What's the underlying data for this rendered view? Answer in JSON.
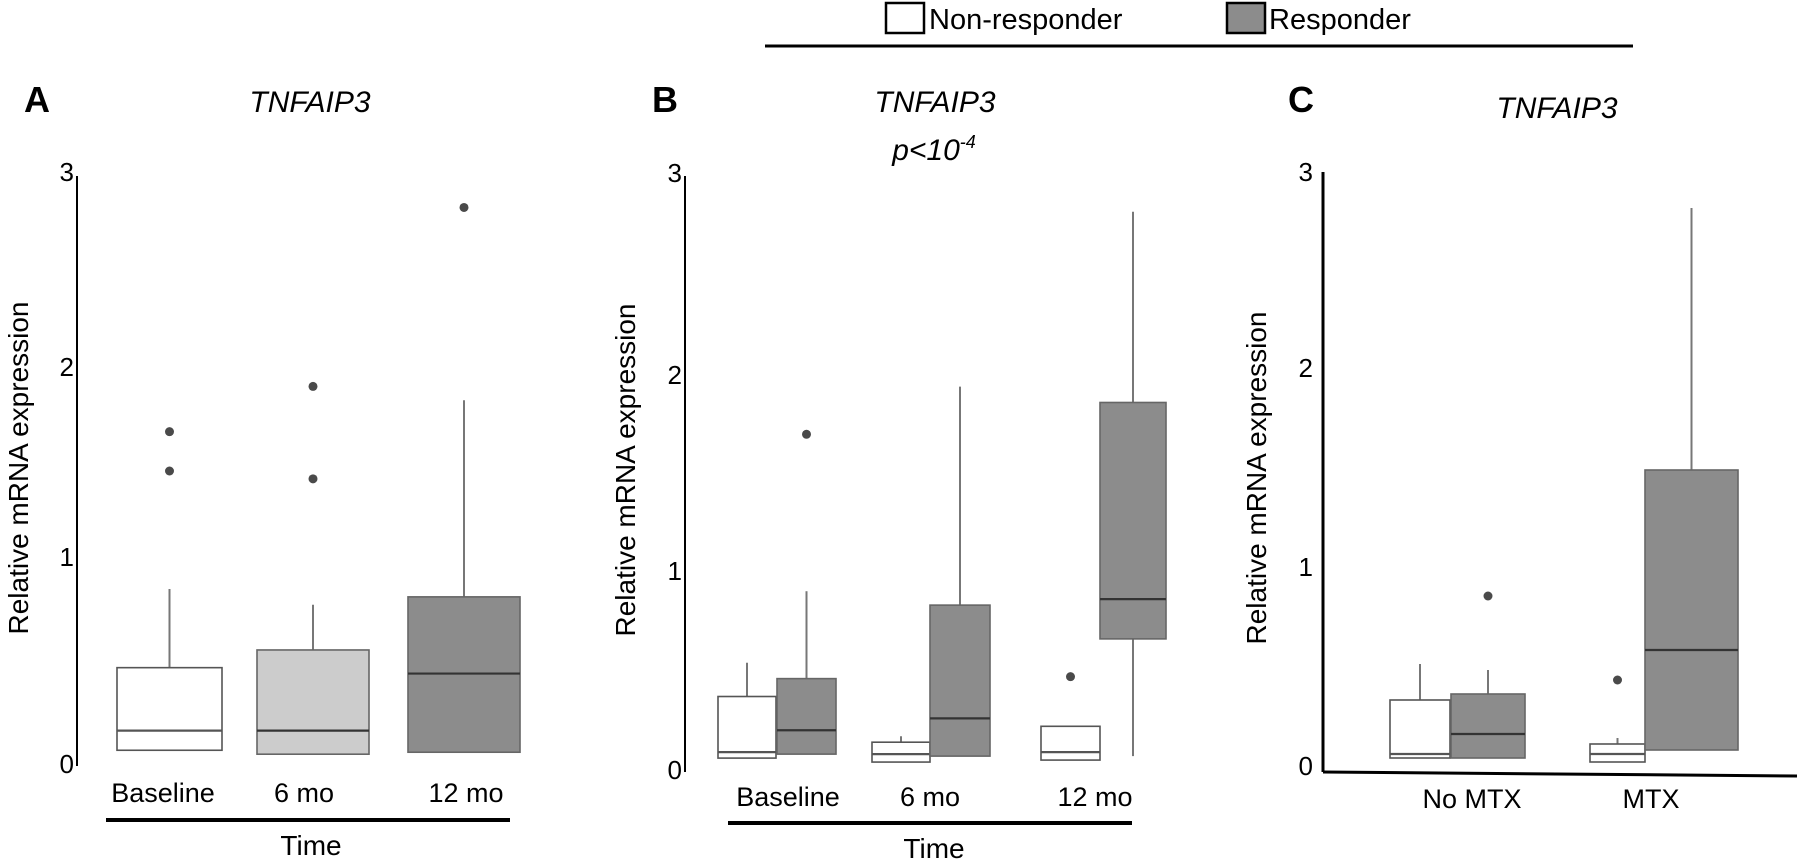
{
  "legend": {
    "items": [
      {
        "label": "Non-responder",
        "color": "#ffffff"
      },
      {
        "label": "Responder",
        "color": "#8c8c8c"
      }
    ]
  },
  "chart_data": [
    {
      "panel": "A",
      "type": "box",
      "title": "TNFAIP3",
      "subtitle": "",
      "ylabel": "Relative mRNA expression",
      "xlabel": "Time",
      "ylim": [
        0,
        3
      ],
      "yticks": [
        0,
        1,
        2,
        3
      ],
      "categories": [
        "Baseline",
        "6 mo",
        "12 mo"
      ],
      "series": [
        {
          "colors": [
            "#ffffff",
            "#cccccc",
            "#8c8c8c"
          ],
          "boxes": [
            {
              "min": 0.08,
              "q1": 0.08,
              "median": 0.18,
              "q3": 0.5,
              "max": 0.9,
              "outliers": [
                1.5,
                1.7
              ]
            },
            {
              "min": 0.06,
              "q1": 0.06,
              "median": 0.18,
              "q3": 0.59,
              "max": 0.82,
              "outliers": [
                1.46,
                1.93
              ]
            },
            {
              "min": 0.07,
              "q1": 0.07,
              "median": 0.47,
              "q3": 0.86,
              "max": 1.86,
              "outliers": [
                2.84
              ]
            }
          ]
        }
      ]
    },
    {
      "panel": "B",
      "type": "box",
      "title": "TNFAIP3",
      "subtitle_base": "p<10",
      "subtitle_exp": "-4",
      "ylabel": "Relative mRNA expression",
      "xlabel": "Time",
      "ylim": [
        0,
        3
      ],
      "yticks": [
        0,
        1,
        2,
        3
      ],
      "categories": [
        "Baseline",
        "6 mo",
        "12 mo"
      ],
      "series": [
        {
          "legend_ref": "Non-responder",
          "color": "#ffffff",
          "boxes": [
            {
              "min": 0.07,
              "q1": 0.07,
              "median": 0.1,
              "q3": 0.38,
              "max": 0.55,
              "outliers": []
            },
            {
              "min": 0.05,
              "q1": 0.05,
              "median": 0.09,
              "q3": 0.15,
              "max": 0.18,
              "outliers": []
            },
            {
              "min": 0.06,
              "q1": 0.06,
              "median": 0.1,
              "q3": 0.23,
              "max": 0.23,
              "outliers": [
                0.48
              ]
            }
          ]
        },
        {
          "legend_ref": "Responder",
          "color": "#8c8c8c",
          "boxes": [
            {
              "min": 0.09,
              "q1": 0.09,
              "median": 0.21,
              "q3": 0.47,
              "max": 0.91,
              "outliers": [
                1.7
              ]
            },
            {
              "min": 0.08,
              "q1": 0.08,
              "median": 0.27,
              "q3": 0.84,
              "max": 1.94,
              "outliers": []
            },
            {
              "min": 0.08,
              "q1": 0.67,
              "median": 0.87,
              "q3": 1.86,
              "max": 2.82,
              "outliers": []
            }
          ]
        }
      ]
    },
    {
      "panel": "C",
      "type": "box",
      "title": "TNFAIP3",
      "subtitle": "",
      "ylabel": "Relative mRNA expression",
      "xlabel": "",
      "ylim": [
        0,
        3
      ],
      "yticks": [
        0,
        1,
        2,
        3
      ],
      "categories": [
        "No MTX",
        "MTX"
      ],
      "series": [
        {
          "legend_ref": "Non-responder",
          "color": "#ffffff",
          "boxes": [
            {
              "min": 0.07,
              "q1": 0.07,
              "median": 0.09,
              "q3": 0.36,
              "max": 0.54,
              "outliers": []
            },
            {
              "min": 0.05,
              "q1": 0.05,
              "median": 0.09,
              "q3": 0.14,
              "max": 0.17,
              "outliers": [
                0.46
              ]
            }
          ]
        },
        {
          "legend_ref": "Responder",
          "color": "#8c8c8c",
          "boxes": [
            {
              "min": 0.07,
              "q1": 0.07,
              "median": 0.19,
              "q3": 0.39,
              "max": 0.51,
              "outliers": [
                0.88
              ]
            },
            {
              "min": 0.11,
              "q1": 0.11,
              "median": 0.61,
              "q3": 1.51,
              "max": 2.82,
              "outliers": []
            }
          ]
        }
      ]
    }
  ]
}
